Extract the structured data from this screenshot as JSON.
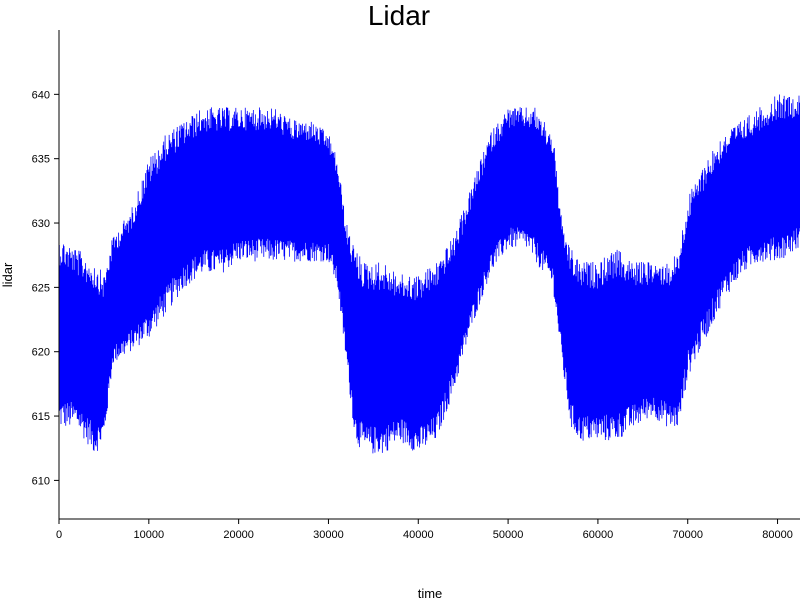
{
  "chart_data": {
    "type": "line",
    "title": "Lidar",
    "xlabel": "time",
    "ylabel": "lidar",
    "xlim": [
      0,
      82500
    ],
    "ylim": [
      607,
      645
    ],
    "xticks": [
      0,
      10000,
      20000,
      30000,
      40000,
      50000,
      60000,
      70000,
      80000
    ],
    "yticks": [
      610,
      615,
      620,
      625,
      630,
      635,
      640
    ],
    "grid": false,
    "legend": "none",
    "series": [
      {
        "color": "#0000ff",
        "x": [
          0,
          2000,
          4000,
          5000,
          6000,
          8000,
          10000,
          12000,
          14000,
          16000,
          18000,
          20000,
          22000,
          24000,
          26000,
          28000,
          30000,
          31000,
          32000,
          33000,
          34000,
          36000,
          38000,
          40000,
          42000,
          44000,
          46000,
          48000,
          50000,
          52000,
          53000,
          54000,
          55000,
          56000,
          57000,
          58000,
          60000,
          62000,
          64000,
          66000,
          68000,
          69000,
          70000,
          72000,
          74000,
          76000,
          78000,
          80000,
          82500
        ],
        "low": [
          614,
          614,
          612,
          613,
          619,
          620,
          621,
          623,
          625,
          626,
          626,
          627,
          627,
          627,
          627,
          627,
          627,
          625,
          619,
          613,
          612,
          612,
          613,
          612,
          613,
          617,
          622,
          626,
          628,
          628,
          627,
          626,
          625,
          619,
          614,
          613,
          613,
          613,
          614,
          615,
          614,
          614,
          618,
          621,
          624,
          626,
          627,
          627,
          628
        ],
        "high": [
          629,
          628,
          627,
          626,
          629,
          631,
          635,
          637,
          638,
          639,
          639,
          639,
          639,
          639,
          638,
          638,
          637,
          635,
          630,
          628,
          627,
          627,
          626,
          626,
          627,
          629,
          633,
          637,
          639,
          639,
          639,
          638,
          637,
          630,
          628,
          627,
          627,
          628,
          627,
          627,
          627,
          628,
          632,
          635,
          637,
          638,
          639,
          640,
          640
        ]
      }
    ]
  }
}
